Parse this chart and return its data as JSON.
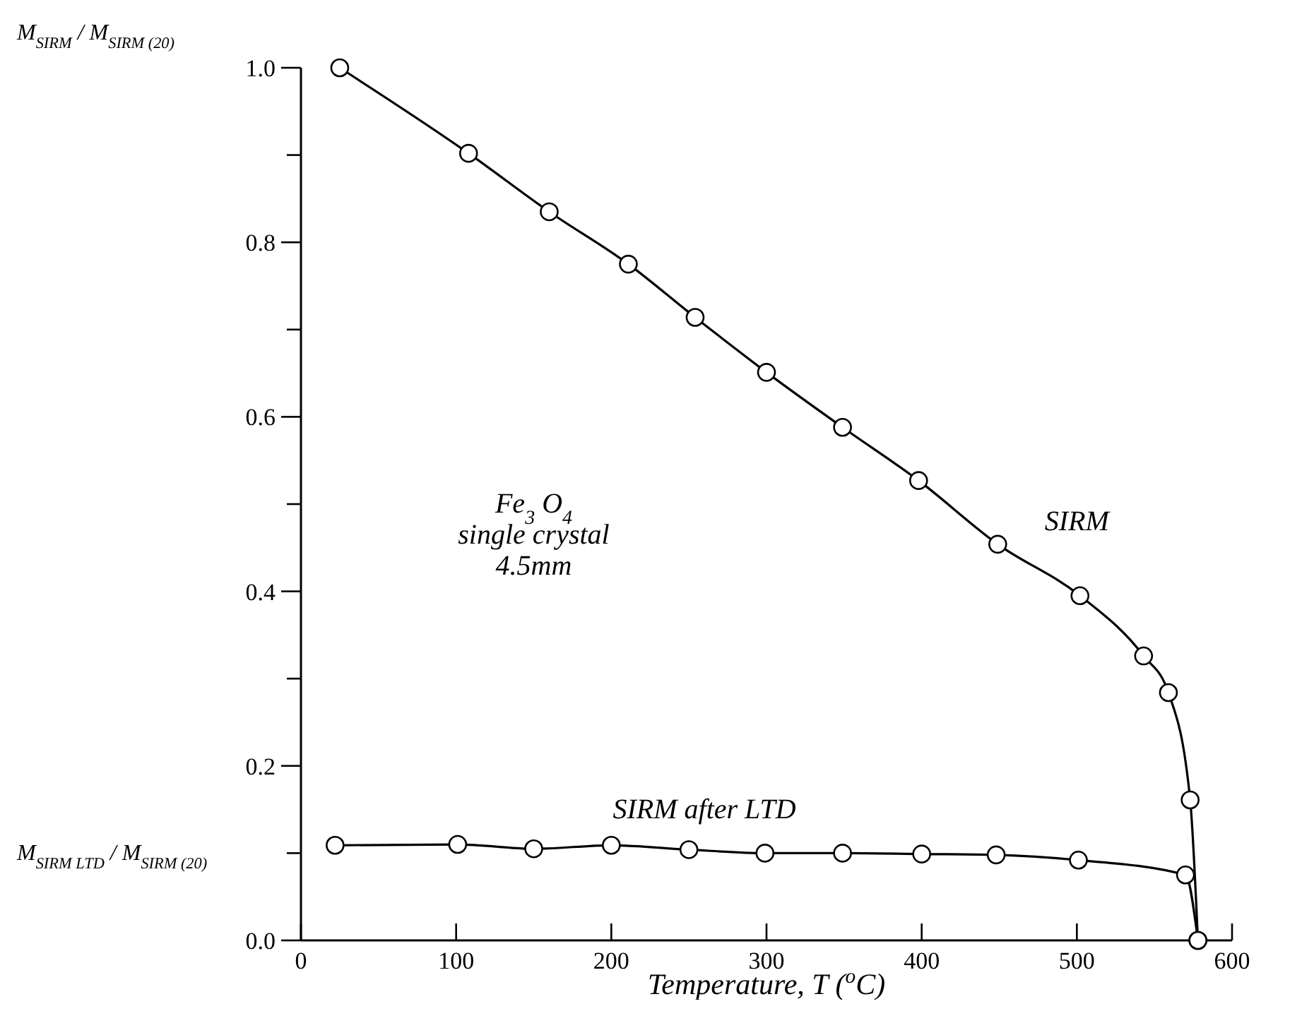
{
  "chart_data": {
    "type": "line",
    "xlabel": "Temperature, T ($^{o}$C)",
    "ylabel": "M$_{SIRM}$ / M$_{SIRM (20)}$",
    "xlim": [
      0,
      600
    ],
    "ylim": [
      0,
      1.0
    ],
    "xticks": [
      0,
      100,
      200,
      300,
      400,
      500,
      600
    ],
    "yticks": [
      {
        "value": 0,
        "label": "0.0"
      },
      {
        "value": 0.1,
        "label": null
      },
      {
        "value": 0.2,
        "label": "0.2"
      },
      {
        "value": 0.3,
        "label": null
      },
      {
        "value": 0.4,
        "label": "0.4"
      },
      {
        "value": 0.5,
        "label": null
      },
      {
        "value": 0.6,
        "label": "0.6"
      },
      {
        "value": 0.7,
        "label": null
      },
      {
        "value": 0.8,
        "label": "0.8"
      },
      {
        "value": 0.9,
        "label": null
      },
      {
        "value": 1.0,
        "label": "1.0"
      }
    ],
    "grid": false,
    "marker": "circle",
    "line_style": "solid",
    "series": [
      {
        "name": "SIRM",
        "color": "#000000",
        "x": [
          25,
          108,
          160,
          211,
          254,
          300,
          349,
          398,
          449,
          502,
          543,
          559,
          573,
          578
        ],
        "values": [
          1.0,
          0.902,
          0.835,
          0.775,
          0.714,
          0.651,
          0.588,
          0.527,
          0.454,
          0.395,
          0.326,
          0.284,
          0.161,
          0.0
        ]
      },
      {
        "name": "SIRM after LTD",
        "color": "#000000",
        "x": [
          22,
          101,
          150,
          200,
          250,
          299,
          349,
          400,
          448,
          501,
          570,
          578
        ],
        "values": [
          0.109,
          0.11,
          0.105,
          0.109,
          0.104,
          0.1,
          0.1,
          0.099,
          0.098,
          0.092,
          0.075,
          0.0
        ]
      }
    ],
    "annotations": [
      "M$_{SIRM LTD}$ / M$_{SIRM (20)}$",
      "Fe$_{3}$ O$_{4}$\nsingle crystal\n4.5mm"
    ]
  }
}
